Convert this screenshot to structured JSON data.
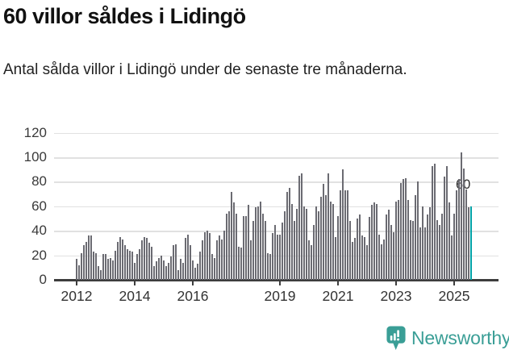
{
  "header": {
    "title": "60 villor såldes i Lidingö",
    "subtitle": "Antal sålda villor i Lidingö under de senaste tre månaderna."
  },
  "chart_data": {
    "type": "bar",
    "title": "60 villor såldes i Lidingö",
    "granularity": "monthly",
    "x_start": "2012-01",
    "values": [
      17,
      12,
      22,
      28,
      31,
      36,
      36,
      23,
      22,
      11,
      8,
      21,
      21,
      17,
      18,
      16,
      24,
      31,
      35,
      33,
      28,
      25,
      24,
      23,
      14,
      21,
      25,
      32,
      35,
      34,
      30,
      27,
      11,
      15,
      18,
      20,
      16,
      11,
      14,
      19,
      28,
      29,
      8,
      17,
      14,
      34,
      37,
      28,
      16,
      10,
      13,
      23,
      32,
      39,
      40,
      38,
      21,
      18,
      32,
      36,
      33,
      40,
      54,
      56,
      72,
      63,
      54,
      27,
      26,
      52,
      52,
      61,
      32,
      48,
      59,
      60,
      64,
      54,
      48,
      22,
      21,
      38,
      45,
      37,
      37,
      47,
      56,
      72,
      75,
      62,
      48,
      58,
      85,
      87,
      60,
      58,
      32,
      28,
      45,
      60,
      56,
      68,
      78,
      69,
      87,
      64,
      62,
      35,
      52,
      73,
      90,
      73,
      73,
      48,
      31,
      34,
      50,
      53,
      36,
      35,
      28,
      51,
      61,
      63,
      62,
      37,
      29,
      33,
      53,
      57,
      45,
      39,
      64,
      65,
      79,
      82,
      83,
      65,
      49,
      48,
      69,
      80,
      43,
      60,
      43,
      53,
      59,
      93,
      95,
      49,
      45,
      54,
      84,
      93,
      63,
      36,
      54,
      73,
      82,
      104,
      91,
      74,
      59,
      60
    ],
    "highlight_last": {
      "label": "60",
      "value": 60
    },
    "x_ticks": [
      {
        "label": "2012",
        "month_index": 0
      },
      {
        "label": "2014",
        "month_index": 24
      },
      {
        "label": "2016",
        "month_index": 48
      },
      {
        "label": "2019",
        "month_index": 84
      },
      {
        "label": "2021",
        "month_index": 108
      },
      {
        "label": "2023",
        "month_index": 132
      },
      {
        "label": "2025",
        "month_index": 156
      }
    ],
    "y_ticks": [
      0,
      20,
      40,
      60,
      80,
      100,
      120
    ],
    "ylim": [
      0,
      125
    ],
    "grid": true,
    "legend_position": "none",
    "bar_color": "#6b6b72",
    "highlight_color": "#00a1a6"
  },
  "footer": {
    "brand": "Newsworthy"
  },
  "colors": {
    "background": "#ffffff",
    "title_text": "#111111",
    "axis": "#3d3d3d",
    "tick_label": "#333333",
    "gridline": "#e1e1e1",
    "bar": "#6b6b72",
    "accent": "#00a1a6",
    "brand_teal": "#3a9e96"
  }
}
